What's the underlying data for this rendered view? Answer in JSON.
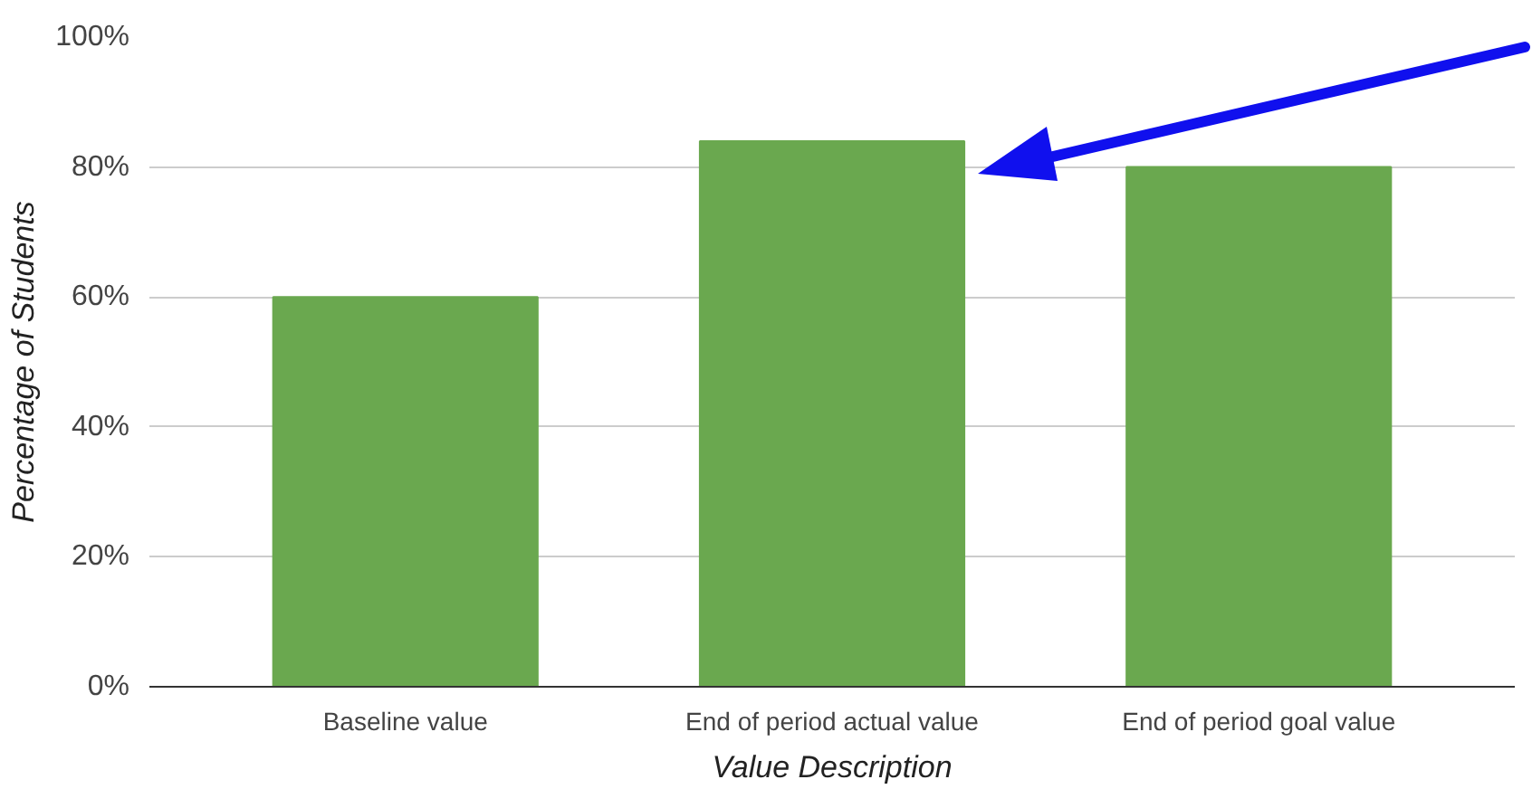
{
  "chart_data": {
    "type": "bar",
    "xlabel": "Value Description",
    "ylabel": "Percentage of Students",
    "categories": [
      "Baseline value",
      "End of period actual value",
      "End of period goal value"
    ],
    "values": [
      60,
      84,
      80
    ],
    "color": "#6aa84f",
    "ylim": [
      0,
      100
    ],
    "yticks": [
      {
        "value": 0,
        "label": "0%"
      },
      {
        "value": 20,
        "label": "20%"
      },
      {
        "value": 40,
        "label": "40%"
      },
      {
        "value": 60,
        "label": "60%"
      },
      {
        "value": 80,
        "label": "80%"
      },
      {
        "value": 100,
        "label": "100%"
      }
    ],
    "grid": "y"
  }
}
